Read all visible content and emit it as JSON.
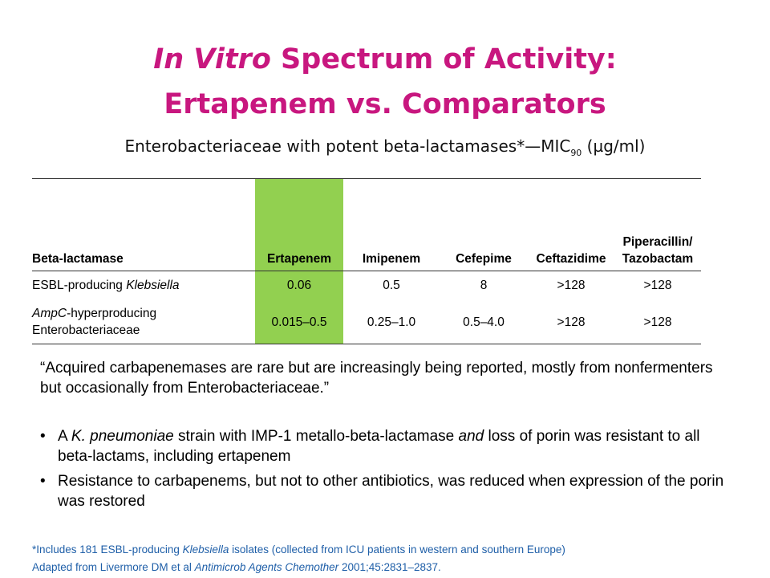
{
  "title": {
    "line1_italic": "In Vitro",
    "line1_rest": " Spectrum of Activity:",
    "line2": "Ertapenem vs. Comparators"
  },
  "subtitle": {
    "before_sub": "Enterobacteriaceae with potent beta-lactamases*—MIC",
    "sub": "90",
    "after_sub": " (µg/ml)"
  },
  "table": {
    "headers": [
      "Beta-lactamase",
      "Ertapenem",
      "Imipenem",
      "Cefepime",
      "Ceftazidime",
      "Piperacillin/ Tazobactam"
    ],
    "rows": [
      {
        "name_italic": "",
        "name_rest": "ESBL-producing ",
        "name_italic_end": "Klebsiella",
        "values": [
          "0.06",
          "0.5",
          "8",
          ">128",
          ">128"
        ]
      },
      {
        "name_italic": "AmpC",
        "name_rest": "-hyperproducing Enterobacteriaceae",
        "name_italic_end": "",
        "values": [
          "0.015–0.5",
          "0.25–1.0",
          "0.5–4.0",
          ">128",
          ">128"
        ]
      }
    ],
    "highlight_color": "#92d050"
  },
  "quote": "“Acquired carbapenemases are rare but are increasingly being reported, mostly from nonfermenters but occasionally from Enterobacteriaceae.”",
  "bullets": {
    "b1_a": "A ",
    "b1_b_italic": "K. pneumoniae",
    "b1_c": " strain with IMP-1 metallo-beta-lactamase ",
    "b1_d_italic": "and",
    "b1_e": " loss of porin was resistant to all beta-lactams, including ertapenem",
    "b2": "Resistance to carbapenems, but not to other antibiotics, was reduced when expression of the porin was restored"
  },
  "footnote": {
    "f1_a": "*Includes 181 ESBL-producing ",
    "f1_b_italic": "Klebsiella",
    "f1_c": " isolates (collected from ICU patients in western and southern Europe)",
    "f2_a": "Adapted from Livermore DM et al ",
    "f2_b_italic": "Antimicrob Agents Chemother",
    "f2_c": " 2001;45:2831–2837."
  },
  "colors": {
    "title": "#c8177f",
    "footnote": "#1f5fa8"
  }
}
